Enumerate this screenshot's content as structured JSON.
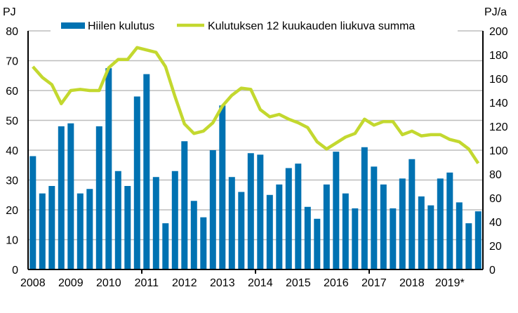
{
  "chart_data": {
    "type": "bar+line",
    "left_axis_unit": "PJ",
    "right_axis_unit": "PJ/a",
    "ylim_left": [
      0,
      80
    ],
    "ylim_right": [
      0,
      200
    ],
    "yticks_left": [
      0,
      10,
      20,
      30,
      40,
      50,
      60,
      70,
      80
    ],
    "yticks_right": [
      0,
      20,
      40,
      60,
      80,
      100,
      120,
      140,
      160,
      180,
      200
    ],
    "x_tick_labels": [
      "2008",
      "2009",
      "2010",
      "2011",
      "2012",
      "2013",
      "2014",
      "2015",
      "2016",
      "2017",
      "2018",
      "2019*"
    ],
    "grid": true,
    "legend_placement": "top",
    "colors": {
      "bars": "#0072b2",
      "line": "#c3d82f"
    },
    "series": [
      {
        "name": "Hiilen kulutus",
        "type": "bar",
        "axis": "left",
        "values": [
          38,
          25.5,
          28,
          48,
          49,
          25.5,
          27,
          48,
          67.5,
          33,
          28,
          58,
          65.5,
          31,
          15.5,
          33,
          43,
          23,
          17.5,
          40,
          55,
          31,
          26,
          39,
          38.5,
          25,
          28.5,
          34,
          35.5,
          21,
          17,
          28.5,
          39.5,
          25.5,
          20.5,
          41,
          34.5,
          28.5,
          20.5,
          30.5,
          37,
          24.5,
          21.5,
          30.5,
          32.5,
          22.5,
          15.5,
          19.5
        ]
      },
      {
        "name": "Kulutuksen 12 kuukauden liukuva summa",
        "type": "line",
        "axis": "right",
        "values": [
          170,
          161,
          155,
          139,
          150,
          151,
          150,
          150,
          169,
          176,
          176,
          186,
          184,
          182,
          170,
          145,
          122,
          114,
          116,
          123,
          137,
          146,
          152,
          151,
          134,
          128,
          130,
          126,
          123,
          119,
          107,
          101,
          106,
          111,
          114,
          126,
          121,
          124,
          124,
          113,
          116,
          112,
          113,
          113,
          109,
          107,
          101,
          89
        ]
      }
    ]
  }
}
